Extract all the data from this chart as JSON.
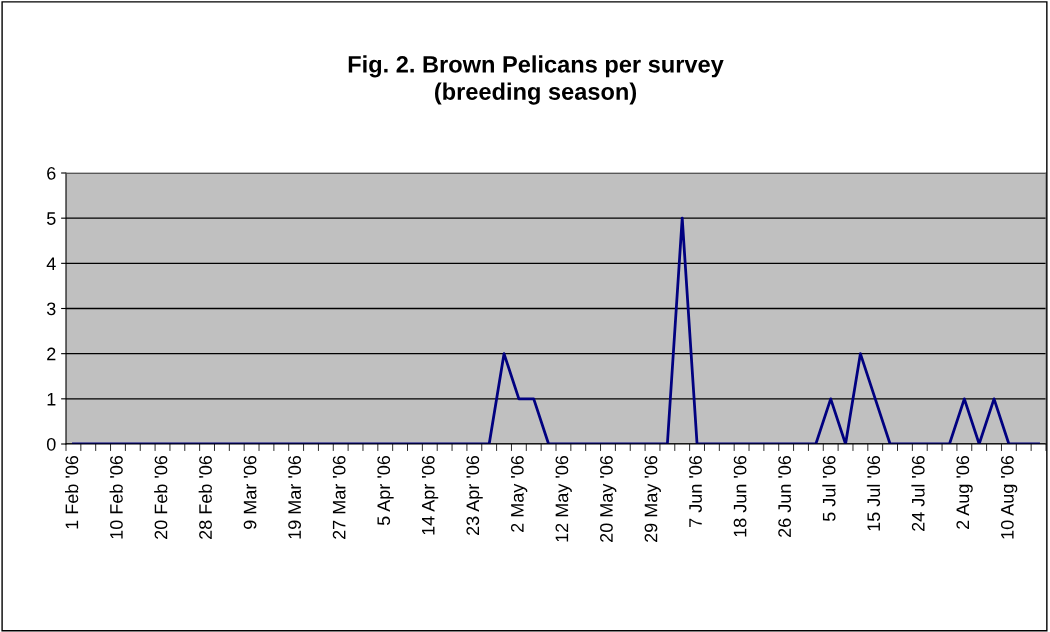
{
  "chart_data": {
    "type": "line",
    "title": "Fig. 2. Brown Pelicans per survey\n(breeding season)",
    "categories": [
      "1 Feb '06",
      null,
      null,
      "10 Feb '06",
      null,
      null,
      "20 Feb '06",
      null,
      null,
      "28 Feb '06",
      null,
      null,
      "9 Mar '06",
      null,
      null,
      "19 Mar '06",
      null,
      null,
      "27 Mar '06",
      null,
      null,
      "5 Apr '06",
      null,
      null,
      "14 Apr '06",
      null,
      null,
      "23 Apr '06",
      null,
      null,
      "2 May '06",
      null,
      null,
      "12 May '06",
      null,
      null,
      "20 May '06",
      null,
      null,
      "29 May '06",
      null,
      null,
      "7 Jun '06",
      null,
      null,
      "18 Jun '06",
      null,
      null,
      "26 Jun '06",
      null,
      null,
      "5 Jul '06",
      null,
      null,
      "15 Jul '06",
      null,
      null,
      "24 Jul '06",
      null,
      null,
      "2 Aug '06",
      null,
      null,
      "10 Aug '06",
      null,
      null
    ],
    "series": [
      {
        "color": "#000080",
        "values": [
          0,
          0,
          0,
          0,
          0,
          0,
          0,
          0,
          0,
          0,
          0,
          0,
          0,
          0,
          0,
          0,
          0,
          0,
          0,
          0,
          0,
          0,
          0,
          0,
          0,
          0,
          0,
          0,
          0,
          2,
          1,
          1,
          0,
          0,
          0,
          0,
          0,
          0,
          0,
          0,
          0,
          5,
          0,
          0,
          0,
          0,
          0,
          0,
          0,
          0,
          0,
          1,
          0,
          2,
          1,
          0,
          0,
          0,
          0,
          0,
          1,
          0,
          1,
          0,
          0,
          0
        ]
      }
    ],
    "ylim": [
      0,
      6
    ],
    "yticks": [
      0,
      1,
      2,
      3,
      4,
      5,
      6
    ],
    "grid": "y",
    "marker": "none",
    "line_style": "solid"
  }
}
